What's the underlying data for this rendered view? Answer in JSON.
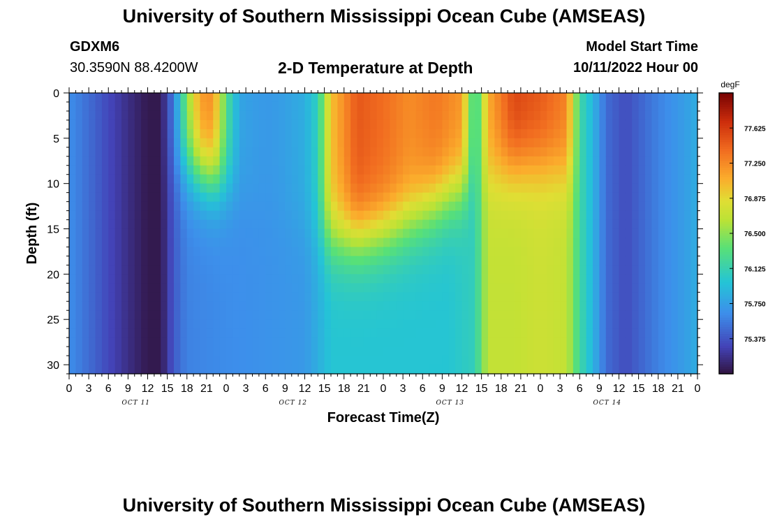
{
  "header": {
    "title": "University of Southern Mississippi Ocean Cube (AMSEAS)",
    "station_id": "GDXM6",
    "station_coords": "30.3590N  88.4200W",
    "plot_title": "2-D Temperature at Depth",
    "model_start_label": "Model Start Time",
    "model_start_value": "10/11/2022 Hour 00"
  },
  "footer": {
    "title": "University of Southern Mississippi Ocean Cube (AMSEAS)"
  },
  "chart_data": {
    "type": "heatmap",
    "title": "2-D Temperature at Depth",
    "xlabel": "Forecast Time(Z)",
    "ylabel": "Depth (ft)",
    "x_range_hours": [
      0,
      96
    ],
    "ylim": [
      0,
      31
    ],
    "y_ticks": [
      0,
      5,
      10,
      15,
      20,
      25,
      30
    ],
    "x_tick_labels": [
      "0",
      "3",
      "6",
      "9",
      "12",
      "15",
      "18",
      "21",
      "0",
      "3",
      "6",
      "9",
      "12",
      "15",
      "18",
      "21",
      "0",
      "3",
      "6",
      "9",
      "12",
      "15",
      "18",
      "21",
      "0",
      "3",
      "6",
      "9",
      "12",
      "15",
      "18",
      "21",
      "0"
    ],
    "day_labels": [
      {
        "text": "OCT 11",
        "hour": 10
      },
      {
        "text": "OCT 12",
        "hour": 34
      },
      {
        "text": "OCT 13",
        "hour": 58
      },
      {
        "text": "OCT 14",
        "hour": 82
      }
    ],
    "colorbar": {
      "unit": "degF",
      "range": [
        75.0,
        78.0
      ],
      "ticks": [
        "77.625",
        "77.250",
        "76.875",
        "76.500",
        "76.125",
        "75.750",
        "75.375"
      ]
    },
    "temperature_profiles_degF": {
      "description_hours": "time hour since start",
      "surface": [
        [
          0,
          75.66
        ],
        [
          3,
          75.5
        ],
        [
          6,
          75.33
        ],
        [
          9,
          75.18
        ],
        [
          12,
          75.05
        ],
        [
          14,
          75.05
        ],
        [
          16,
          75.6
        ],
        [
          18,
          76.5
        ],
        [
          20,
          77.2
        ],
        [
          22,
          77.25
        ],
        [
          24,
          76.3
        ],
        [
          26,
          75.8
        ],
        [
          28,
          75.75
        ],
        [
          30,
          75.72
        ],
        [
          32,
          75.74
        ],
        [
          36,
          75.85
        ],
        [
          38,
          76.1
        ],
        [
          40,
          77.0
        ],
        [
          44,
          77.5
        ],
        [
          48,
          77.4
        ],
        [
          52,
          77.25
        ],
        [
          56,
          77.35
        ],
        [
          60,
          77.2
        ],
        [
          62,
          76.1
        ],
        [
          64,
          77.1
        ],
        [
          68,
          77.6
        ],
        [
          72,
          77.5
        ],
        [
          76,
          77.3
        ],
        [
          78,
          76.2
        ],
        [
          80,
          75.9
        ],
        [
          82,
          75.5
        ],
        [
          85,
          75.35
        ],
        [
          87,
          75.45
        ],
        [
          90,
          75.6
        ],
        [
          94,
          75.75
        ],
        [
          96,
          75.85
        ]
      ],
      "depth_30ft": [
        [
          0,
          75.66
        ],
        [
          3,
          75.5
        ],
        [
          6,
          75.33
        ],
        [
          9,
          75.18
        ],
        [
          12,
          75.05
        ],
        [
          14,
          75.05
        ],
        [
          16,
          75.42
        ],
        [
          18,
          75.6
        ],
        [
          20,
          75.62
        ],
        [
          24,
          75.65
        ],
        [
          30,
          75.68
        ],
        [
          36,
          75.72
        ],
        [
          38,
          75.85
        ],
        [
          40,
          76.0
        ],
        [
          46,
          76.0
        ],
        [
          52,
          76.0
        ],
        [
          58,
          76.0
        ],
        [
          62,
          76.1
        ],
        [
          64,
          76.7
        ],
        [
          68,
          76.7
        ],
        [
          72,
          76.75
        ],
        [
          76,
          76.7
        ],
        [
          78,
          76.2
        ],
        [
          80,
          75.9
        ],
        [
          82,
          75.5
        ],
        [
          85,
          75.35
        ],
        [
          87,
          75.45
        ],
        [
          90,
          75.6
        ],
        [
          94,
          75.75
        ],
        [
          96,
          75.85
        ]
      ]
    }
  }
}
